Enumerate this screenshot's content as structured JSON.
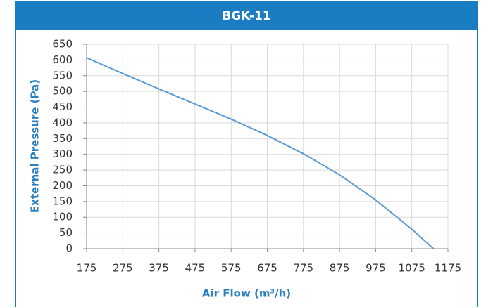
{
  "chart_data": {
    "type": "line",
    "title": "BGK-11",
    "x_label": "Air Flow (m³/h)",
    "y_label": "External Pressure (Pa)",
    "x": [
      175,
      275,
      375,
      475,
      575,
      675,
      775,
      875,
      975,
      1075,
      1135
    ],
    "series": [
      {
        "name": "BGK-11",
        "color": "#5b9bd5",
        "values": [
          607,
          557,
          508,
          460,
          412,
          360,
          302,
          235,
          155,
          62,
          0
        ]
      }
    ],
    "xlim": [
      175,
      1175
    ],
    "xticks": [
      175,
      275,
      375,
      475,
      575,
      675,
      775,
      875,
      975,
      1075,
      1175
    ],
    "ylim": [
      0,
      650
    ],
    "yticks": [
      0,
      50,
      100,
      150,
      200,
      250,
      300,
      350,
      400,
      450,
      500,
      550,
      600,
      650
    ],
    "grid": true
  }
}
